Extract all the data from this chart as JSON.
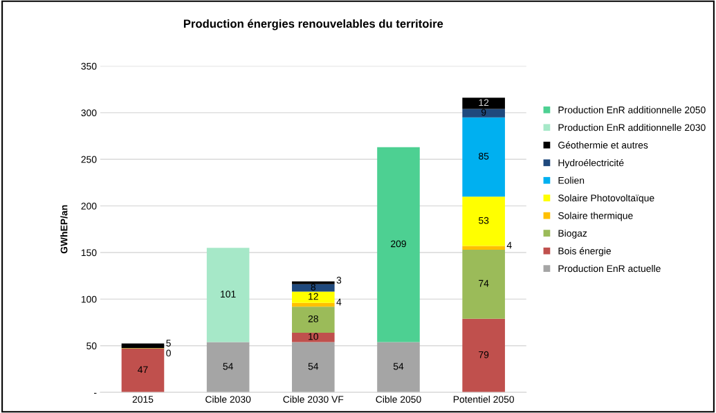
{
  "chart_data": {
    "type": "bar",
    "stacked": true,
    "title": "Production énergies renouvelables du territoire",
    "ylabel": "GWhEP/an",
    "categories": [
      "2015",
      "Cible 2030",
      "Cible 2030 VF",
      "Cible 2050",
      "Potentiel 2050"
    ],
    "ylim": [
      0,
      350
    ],
    "yticks": [
      {
        "value": 0,
        "label": "-"
      },
      50,
      100,
      150,
      200,
      250,
      300,
      350
    ],
    "grid": "y",
    "legend": "right",
    "series": [
      {
        "name": "Production EnR actuelle",
        "color": "#a5a5a5",
        "values": [
          null,
          54,
          54,
          54,
          null
        ],
        "value_labels": [
          null,
          "54",
          "54",
          "54",
          null
        ]
      },
      {
        "name": "Bois énergie",
        "color": "#c0504d",
        "values": [
          47,
          null,
          10,
          null,
          79
        ],
        "value_labels": [
          "47",
          null,
          "10",
          null,
          "79"
        ]
      },
      {
        "name": "Biogaz",
        "color": "#9bbb59",
        "values": [
          null,
          null,
          28,
          null,
          74
        ],
        "value_labels": [
          null,
          null,
          "28",
          null,
          "74"
        ]
      },
      {
        "name": "Solaire thermique",
        "color": "#ffc000",
        "values": [
          null,
          null,
          4,
          null,
          4
        ],
        "value_labels": [
          null,
          null,
          "4",
          null,
          "4"
        ]
      },
      {
        "name": "Solaire Photovoltaïque",
        "color": "#ffff00",
        "values": [
          0.4,
          null,
          12,
          null,
          53
        ],
        "value_labels": [
          "0",
          null,
          "12",
          null,
          "53"
        ]
      },
      {
        "name": "Eolien",
        "color": "#00b0f0",
        "values": [
          null,
          null,
          null,
          null,
          85
        ],
        "value_labels": [
          null,
          null,
          null,
          null,
          "85"
        ]
      },
      {
        "name": "Hydroélectricité",
        "color": "#1f497d",
        "values": [
          null,
          null,
          8,
          null,
          9
        ],
        "value_labels": [
          null,
          null,
          "8",
          null,
          "9"
        ]
      },
      {
        "name": "Géothermie et autres",
        "color": "#000000",
        "values": [
          5,
          null,
          3,
          null,
          12
        ],
        "value_labels": [
          "5",
          null,
          "3",
          null,
          "12"
        ]
      },
      {
        "name": "Production EnR additionnelle 2030",
        "color": "#a6e8c8",
        "values": [
          null,
          101,
          null,
          null,
          null
        ],
        "value_labels": [
          null,
          "101",
          null,
          null,
          null
        ]
      },
      {
        "name": "Production EnR additionnelle 2050",
        "color": "#4dd092",
        "values": [
          null,
          null,
          null,
          209,
          null
        ],
        "value_labels": [
          null,
          null,
          null,
          "209",
          null
        ]
      }
    ]
  }
}
